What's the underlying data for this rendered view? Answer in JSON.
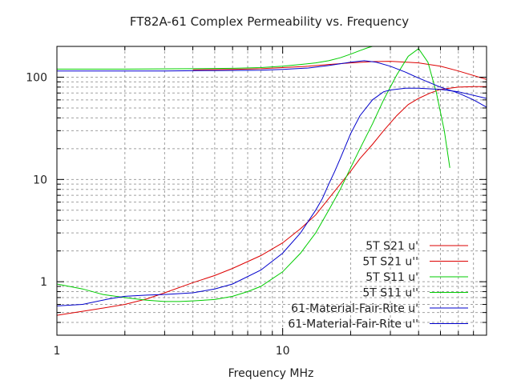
{
  "chart_data": {
    "type": "line",
    "title": "FT82A-61 Complex Permeability vs. Frequency",
    "xlabel": "Frequency MHz",
    "ylabel": "",
    "xscale": "log",
    "yscale": "log",
    "xlim": [
      1,
      80
    ],
    "ylim": [
      0.3,
      200
    ],
    "grid": true,
    "legend_position": "bottom-right",
    "x_ticks": [
      {
        "value": 1,
        "label": "1"
      },
      {
        "value": 10,
        "label": "10"
      }
    ],
    "y_ticks": [
      {
        "value": 1,
        "label": "1"
      },
      {
        "value": 10,
        "label": "10"
      },
      {
        "value": 100,
        "label": "100"
      }
    ],
    "series": [
      {
        "name": "5T S21 u'",
        "color": "#dd0000",
        "x": [
          4,
          6,
          8,
          10,
          13,
          16,
          20,
          25,
          30,
          40,
          50,
          60,
          80
        ],
        "y": [
          118,
          119,
          121,
          124,
          128,
          133,
          138,
          142,
          143,
          138,
          128,
          115,
          95
        ]
      },
      {
        "name": "5T S21 u''",
        "color": "#dd0000",
        "x": [
          1,
          1.2,
          1.5,
          2,
          2.5,
          3,
          4,
          5,
          6,
          8,
          10,
          12,
          14,
          16,
          18,
          20,
          22,
          25,
          28,
          32,
          36,
          40,
          45,
          50,
          60,
          70,
          80
        ],
        "y": [
          0.47,
          0.5,
          0.54,
          0.6,
          0.68,
          0.78,
          0.98,
          1.15,
          1.35,
          1.8,
          2.4,
          3.3,
          4.5,
          6.5,
          9,
          12,
          16,
          22,
          30,
          42,
          54,
          62,
          70,
          76,
          80,
          81,
          81
        ]
      },
      {
        "name": "5T S11 u'",
        "color": "#00cc00",
        "x": [
          1,
          2,
          4,
          6,
          8,
          10,
          12,
          14,
          16,
          18,
          20,
          22,
          24,
          25
        ],
        "y": [
          120,
          120,
          121,
          122,
          124,
          128,
          133,
          138,
          145,
          155,
          168,
          182,
          195,
          200
        ]
      },
      {
        "name": "5T S11 u''",
        "color": "#00cc00",
        "x": [
          1,
          1.3,
          1.6,
          2,
          2.5,
          3,
          3.5,
          4,
          5,
          6,
          7,
          8,
          10,
          12,
          14,
          16,
          18,
          20,
          22,
          25,
          28,
          32,
          36,
          40,
          44,
          48,
          52,
          55
        ],
        "y": [
          0.95,
          0.85,
          0.75,
          0.7,
          0.66,
          0.64,
          0.64,
          0.65,
          0.67,
          0.72,
          0.8,
          0.9,
          1.25,
          1.9,
          3,
          5,
          8,
          13,
          20,
          35,
          60,
          105,
          160,
          190,
          140,
          70,
          30,
          13
        ]
      },
      {
        "name": "61-Material-Fair-Rite u'",
        "color": "#0000cc",
        "x": [
          1,
          3,
          5,
          8,
          10,
          13,
          16,
          20,
          23,
          26,
          30,
          35,
          40,
          45,
          50,
          60,
          70,
          80
        ],
        "y": [
          115,
          115,
          116,
          117,
          119,
          123,
          130,
          140,
          145,
          140,
          128,
          112,
          98,
          88,
          80,
          70,
          60,
          51
        ]
      },
      {
        "name": "61-Material-Fair-Rite u''",
        "color": "#0000cc",
        "x": [
          1,
          1.3,
          1.7,
          2,
          2.5,
          3,
          4,
          5,
          6,
          8,
          10,
          12,
          14,
          15,
          16,
          17,
          18,
          20,
          22,
          25,
          28,
          30,
          35,
          40,
          50,
          60,
          80
        ],
        "y": [
          0.58,
          0.6,
          0.68,
          0.72,
          0.74,
          0.75,
          0.78,
          0.85,
          0.95,
          1.3,
          1.9,
          3,
          5,
          6.5,
          9,
          12,
          16,
          28,
          42,
          60,
          72,
          75,
          78,
          78,
          76,
          72,
          62
        ]
      }
    ]
  }
}
